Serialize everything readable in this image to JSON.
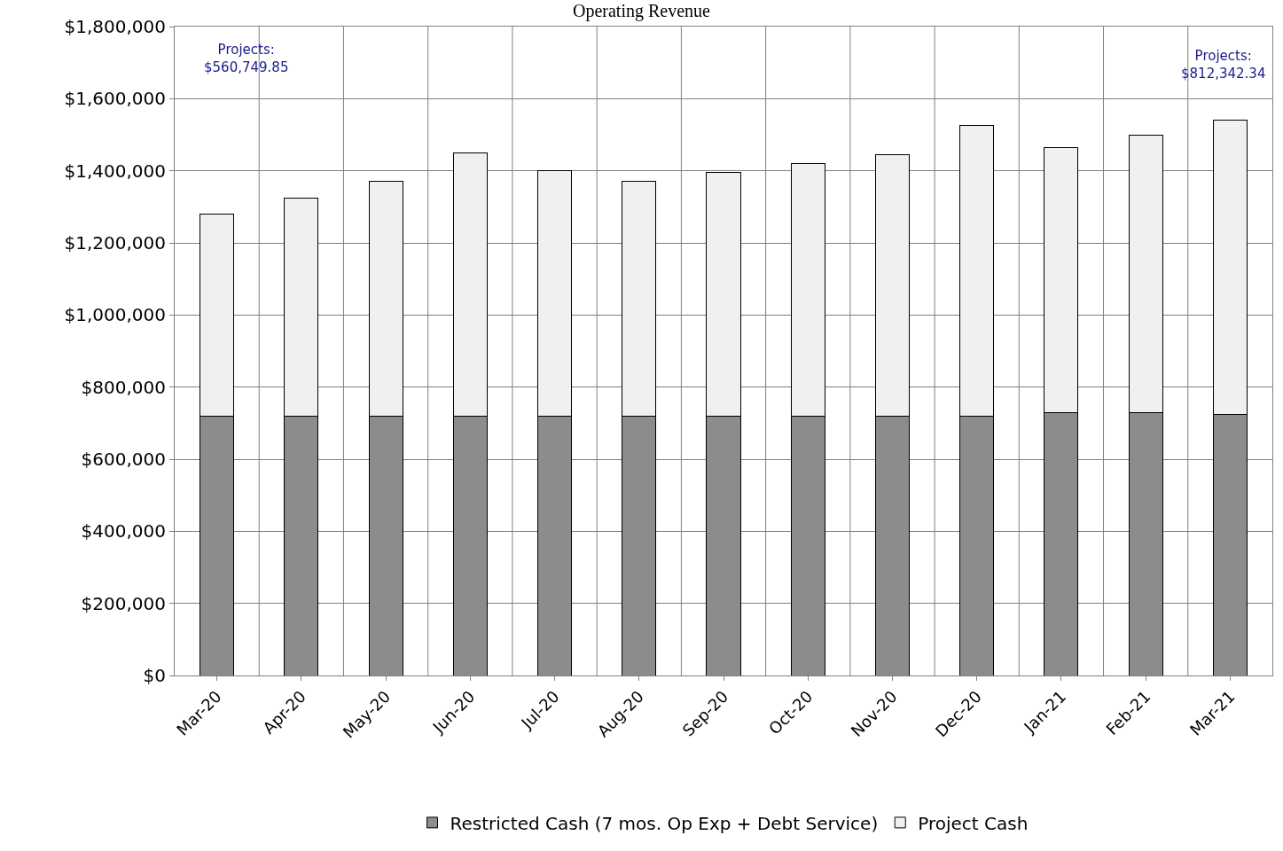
{
  "chart_data": {
    "type": "bar",
    "title": "Operating Revenue",
    "stacked": true,
    "categories": [
      "Mar-20",
      "Apr-20",
      "May-20",
      "Jun-20",
      "Jul-20",
      "Aug-20",
      "Sep-20",
      "Oct-20",
      "Nov-20",
      "Dec-20",
      "Jan-21",
      "Feb-21",
      "Mar-21"
    ],
    "series": [
      {
        "name": "Restricted Cash (7 mos. Op Exp + Debt Service)",
        "color": "#8c8c8c",
        "values": [
          720000,
          720000,
          720000,
          720000,
          720000,
          720000,
          720000,
          720000,
          720000,
          720000,
          730000,
          730000,
          725000
        ]
      },
      {
        "name": "Project Cash",
        "color": "#f0f0f0",
        "values": [
          560000,
          605000,
          650000,
          730000,
          680000,
          650000,
          675000,
          700000,
          725000,
          805000,
          735000,
          770000,
          815000
        ]
      }
    ],
    "ylim": [
      0,
      1800000
    ],
    "yticks": [
      {
        "value": 0,
        "label": "$0"
      },
      {
        "value": 200000,
        "label": "$200,000"
      },
      {
        "value": 400000,
        "label": "$400,000"
      },
      {
        "value": 600000,
        "label": "$600,000"
      },
      {
        "value": 800000,
        "label": "$800,000"
      },
      {
        "value": 1000000,
        "label": "$1,000,000"
      },
      {
        "value": 1200000,
        "label": "$1,200,000"
      },
      {
        "value": 1400000,
        "label": "$1,400,000"
      },
      {
        "value": 1600000,
        "label": "$1,600,000"
      },
      {
        "value": 1800000,
        "label": "$1,800,000"
      }
    ],
    "annotations": [
      "Projects:\n$560,749.85",
      "Projects:\n$812,342.34"
    ],
    "grid": true,
    "legend": "bottom"
  }
}
